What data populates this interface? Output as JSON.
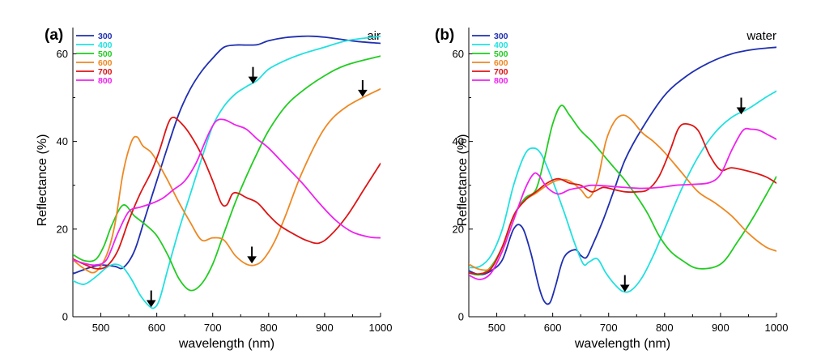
{
  "chart_data": [
    {
      "type": "line",
      "panel_label": "(a)",
      "condition_label": "air",
      "xlabel": "wavelength (nm)",
      "ylabel": "Reflectance (%)",
      "xlim": [
        450,
        1000
      ],
      "ylim": [
        0,
        66
      ],
      "xticks": [
        500,
        600,
        700,
        800,
        900,
        1000
      ],
      "yticks": [
        0,
        20,
        40,
        60
      ],
      "grid": false,
      "legend_position": "top-left",
      "series": [
        {
          "name": "300",
          "color": "#1f2fb0",
          "x": [
            450,
            480,
            500,
            525,
            540,
            560,
            580,
            600,
            620,
            640,
            660,
            680,
            700,
            720,
            740,
            760,
            780,
            800,
            830,
            860,
            880,
            900,
            930,
            960,
            1000
          ],
          "y": [
            9.8,
            11.2,
            11.8,
            11.5,
            11.2,
            15,
            23,
            31,
            39,
            46.5,
            52,
            56,
            59,
            61.5,
            62,
            62,
            62.1,
            63,
            63.7,
            64,
            64,
            63.8,
            63.3,
            62.8,
            62.4
          ]
        },
        {
          "name": "400",
          "color": "#22e0e0",
          "x": [
            450,
            470,
            490,
            510,
            525,
            540,
            555,
            570,
            585,
            595,
            605,
            620,
            640,
            660,
            680,
            700,
            720,
            740,
            760,
            780,
            800,
            830,
            860,
            900,
            940,
            1000
          ],
          "y": [
            8.2,
            7.4,
            9,
            11.2,
            12,
            11.2,
            8.5,
            5,
            2.6,
            2,
            4,
            11,
            20,
            28,
            36,
            43.5,
            48,
            50.8,
            52.5,
            54,
            56.5,
            58.5,
            60,
            61.5,
            63,
            64
          ]
        },
        {
          "name": "500",
          "color": "#22cc22",
          "x": [
            450,
            470,
            490,
            505,
            520,
            540,
            560,
            580,
            600,
            620,
            640,
            660,
            680,
            700,
            720,
            740,
            760,
            780,
            800,
            830,
            860,
            900,
            940,
            1000
          ],
          "y": [
            14.2,
            12.8,
            13,
            16,
            21,
            25.5,
            23,
            21,
            18.5,
            14,
            8.6,
            6,
            7.5,
            12,
            19,
            26,
            32,
            37.5,
            42.5,
            48,
            51.5,
            55,
            57.5,
            59.5
          ]
        },
        {
          "name": "600",
          "color": "#ee8822",
          "x": [
            450,
            470,
            490,
            510,
            525,
            540,
            555,
            565,
            575,
            590,
            605,
            620,
            640,
            660,
            680,
            700,
            720,
            740,
            760,
            775,
            790,
            810,
            830,
            860,
            900,
            940,
            1000
          ],
          "y": [
            13,
            11,
            10.2,
            14,
            21,
            33,
            40,
            41,
            39,
            37.5,
            34.5,
            31,
            26,
            21.5,
            17.5,
            18,
            17.5,
            14,
            12,
            11.8,
            13,
            17,
            23,
            33,
            43,
            48,
            52
          ]
        },
        {
          "name": "700",
          "color": "#dd1515",
          "x": [
            450,
            470,
            490,
            510,
            530,
            550,
            570,
            590,
            605,
            620,
            630,
            645,
            660,
            680,
            700,
            715,
            725,
            735,
            745,
            760,
            780,
            800,
            820,
            850,
            870,
            890,
            910,
            940,
            970,
            1000
          ],
          "y": [
            13.2,
            12,
            11,
            11.5,
            15,
            22,
            28,
            33,
            38,
            44,
            45.5,
            44,
            41.5,
            37,
            31,
            26,
            25.5,
            28,
            28.2,
            27.2,
            26,
            23.2,
            20.8,
            18.5,
            17.3,
            16.8,
            18.5,
            23,
            29,
            35
          ]
        },
        {
          "name": "800",
          "color": "#ee22ee",
          "x": [
            450,
            470,
            490,
            510,
            530,
            550,
            570,
            590,
            610,
            630,
            650,
            670,
            690,
            705,
            720,
            740,
            760,
            780,
            800,
            830,
            860,
            890,
            920,
            950,
            980,
            1000
          ],
          "y": [
            13,
            12.2,
            11.8,
            13,
            19,
            24,
            25,
            25.8,
            27,
            29,
            31,
            35,
            41,
            44.5,
            45,
            43.8,
            42.8,
            40.5,
            38.5,
            34.5,
            30.5,
            26,
            22,
            19.3,
            18.2,
            18
          ]
        }
      ],
      "arrows": [
        {
          "x": 590,
          "y_top": 6.0,
          "y_tip": 2.5
        },
        {
          "x": 772,
          "y_top": 57.0,
          "y_tip": 53.5
        },
        {
          "x": 968,
          "y_top": 54.0,
          "y_tip": 50.5
        },
        {
          "x": 770,
          "y_top": 16.0,
          "y_tip": 12.5
        }
      ]
    },
    {
      "type": "line",
      "panel_label": "(b)",
      "condition_label": "water",
      "xlabel": "wavelength (nm)",
      "ylabel": "Reflectance (%)",
      "xlim": [
        450,
        1000
      ],
      "ylim": [
        0,
        66
      ],
      "xticks": [
        500,
        600,
        700,
        800,
        900,
        1000
      ],
      "yticks": [
        0,
        20,
        40,
        60
      ],
      "grid": false,
      "legend_position": "top-left",
      "series": [
        {
          "name": "300",
          "color": "#1f2fb0",
          "x": [
            450,
            470,
            490,
            510,
            530,
            545,
            560,
            575,
            585,
            595,
            605,
            620,
            640,
            650,
            660,
            670,
            690,
            710,
            730,
            760,
            800,
            840,
            880,
            920,
            960,
            1000
          ],
          "y": [
            10.5,
            9.6,
            10.5,
            13,
            20,
            20.5,
            15,
            7,
            3.5,
            3.2,
            7,
            13.5,
            15.3,
            14,
            13.5,
            16,
            22,
            29,
            36,
            43,
            50.5,
            55,
            58,
            60,
            61,
            61.5
          ]
        },
        {
          "name": "400",
          "color": "#22e0e0",
          "x": [
            450,
            470,
            490,
            510,
            530,
            550,
            565,
            580,
            600,
            620,
            640,
            655,
            665,
            680,
            695,
            710,
            725,
            740,
            760,
            780,
            800,
            830,
            860,
            890,
            920,
            950,
            980,
            1000
          ],
          "y": [
            11.2,
            11.5,
            14,
            20,
            30,
            37,
            38.5,
            37,
            31,
            24,
            16.5,
            12,
            12.5,
            13.2,
            10,
            7.5,
            5.8,
            6,
            9,
            14,
            20,
            29,
            36.5,
            42,
            45.5,
            47.5,
            50,
            51.5
          ]
        },
        {
          "name": "500",
          "color": "#22cc22",
          "x": [
            450,
            470,
            490,
            510,
            530,
            550,
            570,
            585,
            600,
            615,
            630,
            650,
            670,
            690,
            710,
            730,
            750,
            770,
            790,
            810,
            830,
            860,
            900,
            930,
            960,
            1000
          ],
          "y": [
            10,
            9.6,
            11.5,
            16,
            23,
            27,
            29,
            36,
            44,
            48.2,
            46,
            42.5,
            40,
            37,
            34,
            31,
            27.5,
            23.5,
            18.5,
            15,
            13,
            11,
            12,
            17,
            23,
            32
          ]
        },
        {
          "name": "600",
          "color": "#ee8822",
          "x": [
            450,
            470,
            490,
            510,
            530,
            550,
            570,
            590,
            610,
            630,
            650,
            665,
            680,
            695,
            710,
            725,
            740,
            760,
            780,
            800,
            830,
            860,
            890,
            920,
            950,
            980,
            1000
          ],
          "y": [
            12,
            10.8,
            11.2,
            16,
            23,
            26.5,
            28.2,
            30,
            31.2,
            31,
            29,
            27.2,
            31,
            40,
            44.5,
            46,
            45,
            42,
            40,
            37.5,
            33,
            28.5,
            26,
            23,
            19,
            16,
            15
          ]
        },
        {
          "name": "700",
          "color": "#dd1515",
          "x": [
            450,
            470,
            490,
            510,
            530,
            550,
            570,
            590,
            610,
            630,
            650,
            670,
            690,
            710,
            730,
            750,
            770,
            790,
            810,
            825,
            840,
            860,
            880,
            900,
            920,
            950,
            980,
            1000
          ],
          "y": [
            10,
            9.8,
            11,
            16,
            23,
            26.5,
            28.5,
            30.5,
            31.5,
            30.5,
            30,
            28.5,
            29.5,
            29,
            28.5,
            28.5,
            29,
            32,
            38,
            43,
            44,
            42.5,
            37,
            33.5,
            34,
            33.2,
            32,
            30.5
          ]
        },
        {
          "name": "800",
          "color": "#ee22ee",
          "x": [
            450,
            470,
            490,
            510,
            530,
            550,
            565,
            575,
            590,
            610,
            630,
            650,
            670,
            700,
            730,
            760,
            790,
            820,
            850,
            880,
            900,
            920,
            940,
            955,
            970,
            985,
            1000
          ],
          "y": [
            9.5,
            8.5,
            10,
            15,
            22,
            29,
            32.5,
            32.3,
            29.5,
            28,
            29,
            29.5,
            30,
            29.8,
            29.5,
            29.3,
            29.5,
            30,
            30.2,
            30.6,
            32.5,
            38,
            42.5,
            42.8,
            42.5,
            41.5,
            40.5
          ]
        }
      ],
      "arrows": [
        {
          "x": 729,
          "y_top": 9.5,
          "y_tip": 6.0
        },
        {
          "x": 937,
          "y_top": 50.0,
          "y_tip": 46.5
        }
      ]
    }
  ]
}
